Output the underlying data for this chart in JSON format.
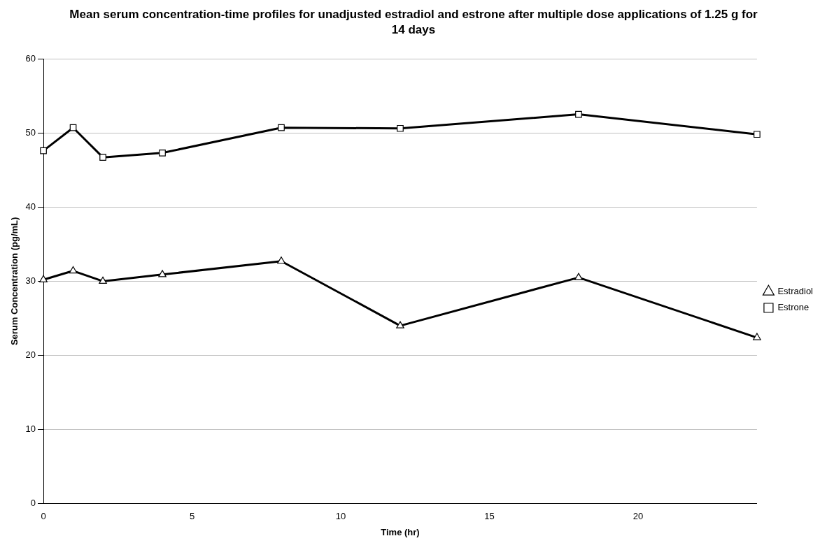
{
  "chart_data": {
    "type": "line",
    "title": "Mean serum concentration-time profiles for unadjusted estradiol and estrone after multiple dose applications of 1.25 g for 14 days",
    "xlabel": "Time (hr)",
    "ylabel": "Serum Concentration (pg/mL)",
    "x": [
      0,
      1,
      2,
      4,
      8,
      12,
      18,
      24
    ],
    "series": [
      {
        "name": "Estradiol",
        "color": "#000000",
        "marker": "triangle",
        "values": [
          30.2,
          31.4,
          30.0,
          30.9,
          32.7,
          24.0,
          30.5,
          22.4
        ]
      },
      {
        "name": "Estrone",
        "color": "#000000",
        "marker": "square",
        "values": [
          47.6,
          50.7,
          46.7,
          47.3,
          50.7,
          50.6,
          52.5,
          49.8
        ]
      }
    ],
    "xlim": [
      0,
      24
    ],
    "xticks": [
      0,
      5,
      10,
      15,
      20
    ],
    "ylim": [
      0,
      60
    ],
    "yticks": [
      0,
      10,
      20,
      30,
      40,
      50,
      60
    ],
    "grid": "y",
    "legend": "right",
    "line_style": "solid"
  }
}
